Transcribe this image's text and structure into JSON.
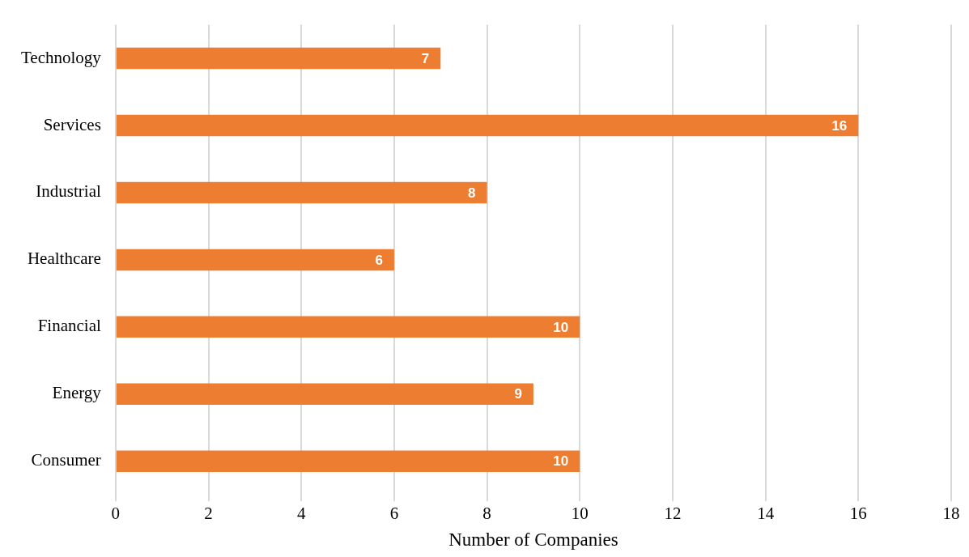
{
  "chart_data": {
    "type": "bar",
    "orientation": "horizontal",
    "xlabel": "Number of Companies",
    "categories": [
      "Technology",
      "Services",
      "Industrial",
      "Healthcare",
      "Financial",
      "Energy",
      "Consumer"
    ],
    "values": [
      7,
      16,
      8,
      6,
      10,
      9,
      10
    ],
    "color": "#ed7d31",
    "xlim": [
      0,
      18
    ],
    "xticks": [
      0,
      2,
      4,
      6,
      8,
      10,
      12,
      14,
      16,
      18
    ],
    "grid": "x",
    "data_labels": true
  }
}
